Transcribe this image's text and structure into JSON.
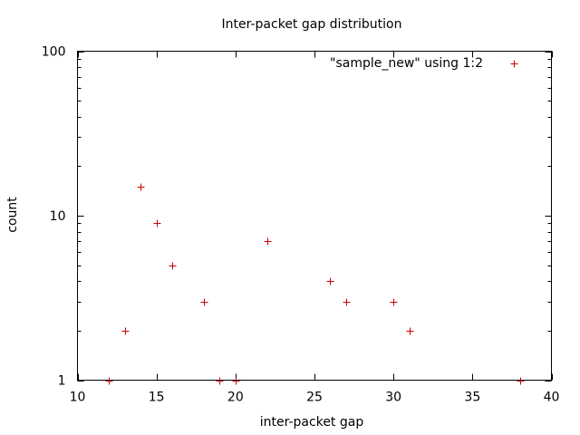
{
  "chart_data": {
    "type": "scatter",
    "title": "Inter-packet gap distribution",
    "xlabel": "inter-packet gap",
    "ylabel": "count",
    "xlim": [
      10,
      40
    ],
    "ylim": [
      1,
      100
    ],
    "y_scale": "log",
    "grid": false,
    "legend_position": "top-right",
    "x_ticks": [
      10,
      15,
      20,
      25,
      30,
      35,
      40
    ],
    "y_ticks": [
      1,
      10,
      100
    ],
    "marker": "plus",
    "series": [
      {
        "name": "\"sample_new\" using 1:2",
        "color": "#cc0000",
        "points": [
          {
            "x": 12,
            "y": 1
          },
          {
            "x": 13,
            "y": 2
          },
          {
            "x": 14,
            "y": 15
          },
          {
            "x": 15,
            "y": 9
          },
          {
            "x": 16,
            "y": 5
          },
          {
            "x": 18,
            "y": 3
          },
          {
            "x": 19,
            "y": 1
          },
          {
            "x": 20,
            "y": 1
          },
          {
            "x": 22,
            "y": 7
          },
          {
            "x": 26,
            "y": 4
          },
          {
            "x": 27,
            "y": 3
          },
          {
            "x": 30,
            "y": 3
          },
          {
            "x": 31,
            "y": 2
          },
          {
            "x": 38,
            "y": 1
          }
        ]
      }
    ]
  }
}
